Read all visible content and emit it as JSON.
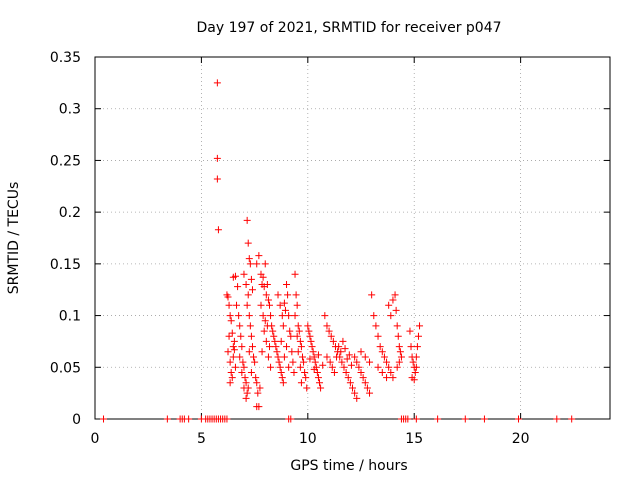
{
  "chart_data": {
    "type": "scatter",
    "title": "Day 197 of 2021, SRMTID for receiver p047",
    "xlabel": "GPS time / hours",
    "ylabel": "SRMTID / TECUs",
    "xlim": [
      0,
      24.2
    ],
    "ylim": [
      0,
      0.35
    ],
    "xticks": [
      0,
      5,
      10,
      15,
      20
    ],
    "xtick_labels": [
      "0",
      "5",
      "10",
      "15",
      "20"
    ],
    "yticks": [
      0,
      0.05,
      0.1,
      0.15,
      0.2,
      0.25,
      0.3,
      0.35
    ],
    "ytick_labels": [
      "0",
      "0.05",
      "0.1",
      "0.15",
      "0.2",
      "0.25",
      "0.3",
      "0.35"
    ],
    "grid": true,
    "marker": "+",
    "color": "#ff0000",
    "series": [
      {
        "name": "SRMTID",
        "points": [
          [
            0.4,
            0
          ],
          [
            3.4,
            0
          ],
          [
            4.0,
            0
          ],
          [
            4.1,
            0
          ],
          [
            4.2,
            0
          ],
          [
            4.4,
            0
          ],
          [
            5.0,
            0
          ],
          [
            5.2,
            0
          ],
          [
            5.3,
            0
          ],
          [
            5.4,
            0
          ],
          [
            5.5,
            0
          ],
          [
            5.6,
            0
          ],
          [
            5.7,
            0
          ],
          [
            5.8,
            0
          ],
          [
            5.9,
            0
          ],
          [
            6.0,
            0
          ],
          [
            6.1,
            0
          ],
          [
            6.2,
            0
          ],
          [
            9.1,
            0
          ],
          [
            9.2,
            0
          ],
          [
            14.4,
            0
          ],
          [
            14.5,
            0
          ],
          [
            14.6,
            0
          ],
          [
            14.7,
            0
          ],
          [
            15.1,
            0
          ],
          [
            16.1,
            0
          ],
          [
            17.4,
            0
          ],
          [
            18.3,
            0
          ],
          [
            19.9,
            0
          ],
          [
            21.7,
            0
          ],
          [
            22.4,
            0
          ],
          [
            5.75,
            0.325
          ],
          [
            5.75,
            0.252
          ],
          [
            5.75,
            0.232
          ],
          [
            5.8,
            0.183
          ],
          [
            6.2,
            0.12
          ],
          [
            6.25,
            0.118
          ],
          [
            6.3,
            0.11
          ],
          [
            6.35,
            0.1
          ],
          [
            6.4,
            0.095
          ],
          [
            6.45,
            0.083
          ],
          [
            6.5,
            0.07
          ],
          [
            6.55,
            0.067
          ],
          [
            6.3,
            0.08
          ],
          [
            6.25,
            0.065
          ],
          [
            6.35,
            0.055
          ],
          [
            6.4,
            0.045
          ],
          [
            6.5,
            0.06
          ],
          [
            6.6,
            0.05
          ],
          [
            6.45,
            0.04
          ],
          [
            6.35,
            0.035
          ],
          [
            6.55,
            0.075
          ],
          [
            6.5,
            0.137
          ],
          [
            6.6,
            0.138
          ],
          [
            6.7,
            0.128
          ],
          [
            6.65,
            0.11
          ],
          [
            6.75,
            0.1
          ],
          [
            6.8,
            0.09
          ],
          [
            6.85,
            0.08
          ],
          [
            6.9,
            0.07
          ],
          [
            6.8,
            0.06
          ],
          [
            6.95,
            0.055
          ],
          [
            7.0,
            0.05
          ],
          [
            6.9,
            0.045
          ],
          [
            7.05,
            0.04
          ],
          [
            7.1,
            0.035
          ],
          [
            7.0,
            0.03
          ],
          [
            7.15,
            0.025
          ],
          [
            7.1,
            0.02
          ],
          [
            7.2,
            0.03
          ],
          [
            7.0,
            0.14
          ],
          [
            7.1,
            0.13
          ],
          [
            7.2,
            0.12
          ],
          [
            7.15,
            0.11
          ],
          [
            7.25,
            0.1
          ],
          [
            7.3,
            0.09
          ],
          [
            7.35,
            0.08
          ],
          [
            7.4,
            0.07
          ],
          [
            7.25,
            0.065
          ],
          [
            7.45,
            0.06
          ],
          [
            7.5,
            0.055
          ],
          [
            7.35,
            0.045
          ],
          [
            7.55,
            0.04
          ],
          [
            7.6,
            0.035
          ],
          [
            7.15,
            0.192
          ],
          [
            7.2,
            0.17
          ],
          [
            7.25,
            0.155
          ],
          [
            7.3,
            0.15
          ],
          [
            7.35,
            0.135
          ],
          [
            7.4,
            0.125
          ],
          [
            7.6,
            0.012
          ],
          [
            7.7,
            0.012
          ],
          [
            7.65,
            0.025
          ],
          [
            7.75,
            0.03
          ],
          [
            7.6,
            0.15
          ],
          [
            7.7,
            0.158
          ],
          [
            7.8,
            0.14
          ],
          [
            7.85,
            0.13
          ],
          [
            7.9,
            0.137
          ],
          [
            7.95,
            0.128
          ],
          [
            8.0,
            0.15
          ],
          [
            8.05,
            0.12
          ],
          [
            8.1,
            0.13
          ],
          [
            8.15,
            0.115
          ],
          [
            8.2,
            0.11
          ],
          [
            8.25,
            0.1
          ],
          [
            8.3,
            0.09
          ],
          [
            8.35,
            0.085
          ],
          [
            8.4,
            0.08
          ],
          [
            8.45,
            0.075
          ],
          [
            8.5,
            0.07
          ],
          [
            8.55,
            0.065
          ],
          [
            8.6,
            0.06
          ],
          [
            8.65,
            0.055
          ],
          [
            8.7,
            0.05
          ],
          [
            8.75,
            0.045
          ],
          [
            8.8,
            0.04
          ],
          [
            8.85,
            0.035
          ],
          [
            7.8,
            0.11
          ],
          [
            7.9,
            0.1
          ],
          [
            8.0,
            0.095
          ],
          [
            8.1,
            0.09
          ],
          [
            7.95,
            0.085
          ],
          [
            8.05,
            0.075
          ],
          [
            8.2,
            0.07
          ],
          [
            7.85,
            0.065
          ],
          [
            8.15,
            0.06
          ],
          [
            8.25,
            0.05
          ],
          [
            8.6,
            0.12
          ],
          [
            8.7,
            0.11
          ],
          [
            8.8,
            0.1
          ],
          [
            8.9,
            0.112
          ],
          [
            9.0,
            0.13
          ],
          [
            9.05,
            0.12
          ],
          [
            8.95,
            0.105
          ],
          [
            9.1,
            0.1
          ],
          [
            8.85,
            0.09
          ],
          [
            9.15,
            0.085
          ],
          [
            9.2,
            0.08
          ],
          [
            8.75,
            0.075
          ],
          [
            9.0,
            0.07
          ],
          [
            9.25,
            0.065
          ],
          [
            8.9,
            0.06
          ],
          [
            9.3,
            0.055
          ],
          [
            9.1,
            0.05
          ],
          [
            9.35,
            0.045
          ],
          [
            9.4,
            0.14
          ],
          [
            9.45,
            0.12
          ],
          [
            9.5,
            0.11
          ],
          [
            9.4,
            0.1
          ],
          [
            9.55,
            0.09
          ],
          [
            9.6,
            0.085
          ],
          [
            9.5,
            0.08
          ],
          [
            9.65,
            0.075
          ],
          [
            9.7,
            0.07
          ],
          [
            9.55,
            0.065
          ],
          [
            9.75,
            0.06
          ],
          [
            9.8,
            0.055
          ],
          [
            9.65,
            0.05
          ],
          [
            9.85,
            0.045
          ],
          [
            9.9,
            0.04
          ],
          [
            9.7,
            0.035
          ],
          [
            9.95,
            0.03
          ],
          [
            10.0,
            0.09
          ],
          [
            10.05,
            0.085
          ],
          [
            10.1,
            0.08
          ],
          [
            10.15,
            0.075
          ],
          [
            10.2,
            0.07
          ],
          [
            10.25,
            0.065
          ],
          [
            10.3,
            0.06
          ],
          [
            10.35,
            0.055
          ],
          [
            10.4,
            0.05
          ],
          [
            10.45,
            0.045
          ],
          [
            10.5,
            0.04
          ],
          [
            10.55,
            0.035
          ],
          [
            10.6,
            0.03
          ],
          [
            10.1,
            0.058
          ],
          [
            10.3,
            0.048
          ],
          [
            10.5,
            0.062
          ],
          [
            10.7,
            0.052
          ],
          [
            10.8,
            0.1
          ],
          [
            10.9,
            0.09
          ],
          [
            11.0,
            0.085
          ],
          [
            11.1,
            0.08
          ],
          [
            11.2,
            0.075
          ],
          [
            11.3,
            0.07
          ],
          [
            11.4,
            0.065
          ],
          [
            11.5,
            0.06
          ],
          [
            11.6,
            0.055
          ],
          [
            11.7,
            0.05
          ],
          [
            11.8,
            0.045
          ],
          [
            11.9,
            0.04
          ],
          [
            12.0,
            0.035
          ],
          [
            12.1,
            0.03
          ],
          [
            12.2,
            0.025
          ],
          [
            12.3,
            0.02
          ],
          [
            10.9,
            0.06
          ],
          [
            11.05,
            0.055
          ],
          [
            11.15,
            0.05
          ],
          [
            11.25,
            0.045
          ],
          [
            11.35,
            0.06
          ],
          [
            11.45,
            0.07
          ],
          [
            11.55,
            0.065
          ],
          [
            11.65,
            0.075
          ],
          [
            11.75,
            0.068
          ],
          [
            11.85,
            0.058
          ],
          [
            11.95,
            0.062
          ],
          [
            12.05,
            0.052
          ],
          [
            12.2,
            0.06
          ],
          [
            12.3,
            0.055
          ],
          [
            12.4,
            0.05
          ],
          [
            12.5,
            0.045
          ],
          [
            12.6,
            0.04
          ],
          [
            12.7,
            0.035
          ],
          [
            12.8,
            0.03
          ],
          [
            12.9,
            0.025
          ],
          [
            12.5,
            0.065
          ],
          [
            12.7,
            0.06
          ],
          [
            12.9,
            0.055
          ],
          [
            13.0,
            0.12
          ],
          [
            13.1,
            0.1
          ],
          [
            13.2,
            0.09
          ],
          [
            13.3,
            0.08
          ],
          [
            13.4,
            0.07
          ],
          [
            13.5,
            0.065
          ],
          [
            13.6,
            0.06
          ],
          [
            13.7,
            0.055
          ],
          [
            13.8,
            0.05
          ],
          [
            13.9,
            0.045
          ],
          [
            14.0,
            0.04
          ],
          [
            13.3,
            0.05
          ],
          [
            13.5,
            0.045
          ],
          [
            13.7,
            0.04
          ],
          [
            13.8,
            0.11
          ],
          [
            13.9,
            0.1
          ],
          [
            14.0,
            0.115
          ],
          [
            14.1,
            0.12
          ],
          [
            14.15,
            0.105
          ],
          [
            14.2,
            0.09
          ],
          [
            14.25,
            0.08
          ],
          [
            14.3,
            0.07
          ],
          [
            14.35,
            0.065
          ],
          [
            14.4,
            0.06
          ],
          [
            14.3,
            0.055
          ],
          [
            14.2,
            0.05
          ],
          [
            14.8,
            0.085
          ],
          [
            14.85,
            0.07
          ],
          [
            14.9,
            0.06
          ],
          [
            14.95,
            0.055
          ],
          [
            15.0,
            0.05
          ],
          [
            15.05,
            0.045
          ],
          [
            15.1,
            0.06
          ],
          [
            15.15,
            0.07
          ],
          [
            15.2,
            0.08
          ],
          [
            15.25,
            0.09
          ],
          [
            14.9,
            0.04
          ],
          [
            15.0,
            0.038
          ],
          [
            15.1,
            0.05
          ]
        ]
      }
    ]
  }
}
